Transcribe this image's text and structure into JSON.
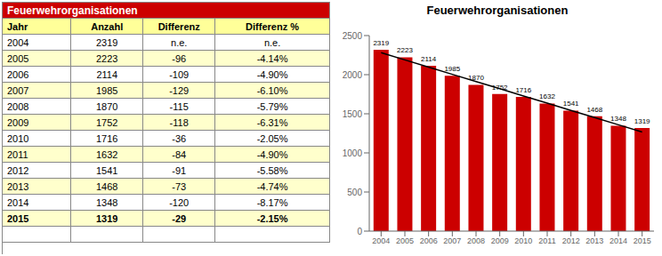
{
  "chart_data": [
    {
      "type": "table",
      "title": "Feuerwehrorganisationen",
      "color": "#CC0000",
      "headers": [
        "Jahr",
        "Anzahl",
        "Differenz",
        "Differenz %"
      ],
      "rows": [
        [
          "2004",
          "2319",
          "n.e.",
          "n.e."
        ],
        [
          "2005",
          "2223",
          "-96",
          "-4.14%"
        ],
        [
          "2006",
          "2114",
          "-109",
          "-4.90%"
        ],
        [
          "2007",
          "1985",
          "-129",
          "-6.10%"
        ],
        [
          "2008",
          "1870",
          "-115",
          "-5.79%"
        ],
        [
          "2009",
          "1752",
          "-118",
          "-6.31%"
        ],
        [
          "2010",
          "1716",
          "-36",
          "-2.05%"
        ],
        [
          "2011",
          "1632",
          "-84",
          "-4.90%"
        ],
        [
          "2012",
          "1541",
          "-91",
          "-5.58%"
        ],
        [
          "2013",
          "1468",
          "-73",
          "-4.74%"
        ],
        [
          "2014",
          "1348",
          "-120",
          "-8.17%"
        ],
        [
          "2015",
          "1319",
          "-29",
          "-2.15%"
        ]
      ]
    },
    {
      "type": "bar",
      "title": "Feuerwehrorganisationen",
      "categories": [
        "2004",
        "2005",
        "2006",
        "2007",
        "2008",
        "2009",
        "2010",
        "2011",
        "2012",
        "2013",
        "2014",
        "2015"
      ],
      "series": [
        {
          "type": "bar",
          "color": "#CC0000",
          "values": [
            2319,
            2223,
            2114,
            1985,
            1870,
            1752,
            1716,
            1632,
            1541,
            1468,
            1348,
            1319
          ]
        },
        {
          "type": "line",
          "color": "#000000",
          "values": [
            2280.974359,
            2188.782051,
            2096.589744,
            2004.397436,
            1912.205128,
            1820.012821,
            1727.820513,
            1635.628205,
            1543.435897,
            1451.24359,
            1359.051282,
            1266.858974
          ]
        }
      ],
      "ylim": [
        0,
        2500
      ],
      "yticks": [
        0,
        500,
        1000,
        1500,
        2000,
        2500
      ],
      "data_labels": true,
      "grid": false
    }
  ]
}
